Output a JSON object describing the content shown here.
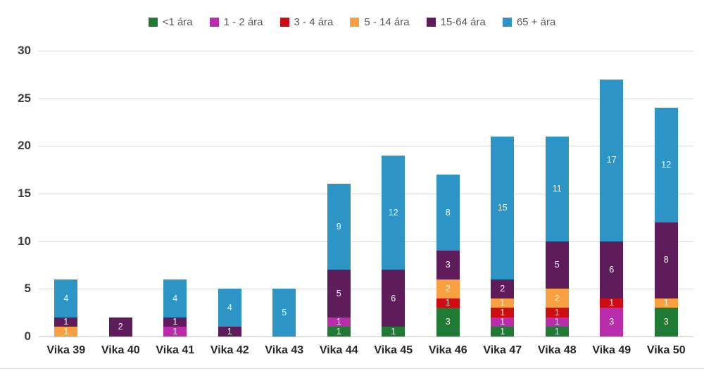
{
  "chart_data": {
    "type": "bar",
    "stacked": true,
    "title": "",
    "xlabel": "",
    "ylabel": "",
    "categories": [
      "Vika 39",
      "Vika 40",
      "Vika 41",
      "Vika 42",
      "Vika 43",
      "Vika 44",
      "Vika 45",
      "Vika 46",
      "Vika 47",
      "Vika 48",
      "Vika 49",
      "Vika 50"
    ],
    "series": [
      {
        "name": "<1 ára",
        "color": "#1f7a33",
        "values": [
          0,
          0,
          0,
          0,
          0,
          1,
          1,
          3,
          1,
          1,
          0,
          3
        ]
      },
      {
        "name": "1 - 2 ára",
        "color": "#b92cac",
        "values": [
          0,
          0,
          1,
          0,
          0,
          1,
          0,
          0,
          1,
          1,
          3,
          0
        ]
      },
      {
        "name": "3 - 4 ára",
        "color": "#cd0c13",
        "values": [
          0,
          0,
          0,
          0,
          0,
          0,
          0,
          1,
          1,
          1,
          1,
          0
        ]
      },
      {
        "name": "5 - 14 ára",
        "color": "#f9a040",
        "values": [
          1,
          0,
          0,
          0,
          0,
          0,
          0,
          2,
          1,
          2,
          0,
          1
        ]
      },
      {
        "name": "15-64 ára",
        "color": "#5e1c5b",
        "values": [
          1,
          2,
          1,
          1,
          0,
          5,
          6,
          3,
          2,
          5,
          6,
          8
        ]
      },
      {
        "name": "65 + ára",
        "color": "#2c95c6",
        "values": [
          4,
          0,
          4,
          4,
          5,
          9,
          12,
          8,
          15,
          11,
          17,
          12
        ]
      }
    ],
    "totals": [
      6,
      2,
      6,
      5,
      5,
      16,
      19,
      17,
      21,
      21,
      27,
      24
    ],
    "yticks": [
      0,
      5,
      10,
      15,
      20,
      25,
      30
    ],
    "ylim": [
      0,
      30
    ],
    "grid": true,
    "legend_position": "top",
    "show_segment_labels": true,
    "colors_meta": {
      "gridline": "#d9d9d9",
      "axis_text": "#3d3d3d",
      "category_text": "#262626",
      "legend_text": "#595959",
      "segment_label_text": "#ffffff"
    }
  }
}
